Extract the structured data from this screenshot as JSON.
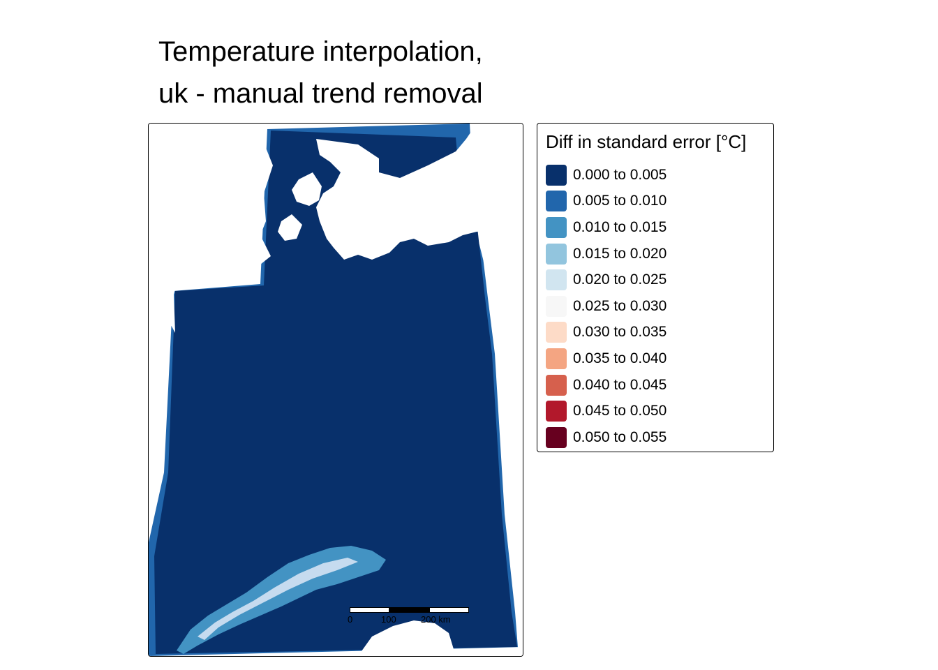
{
  "title": {
    "line1": "Temperature interpolation,",
    "line2": "uk - manual trend removal"
  },
  "map": {
    "fill_color": "#08306B",
    "edge_color": "#2166AC",
    "highland_color": "#C6DBEF",
    "scale_bar": {
      "labels": [
        "0",
        "100",
        "200 km"
      ]
    }
  },
  "legend": {
    "title": "Diff in standard error [°C]",
    "items": [
      {
        "label": "0.000 to 0.005",
        "color": "#08306B"
      },
      {
        "label": "0.005 to 0.010",
        "color": "#2166AC"
      },
      {
        "label": "0.010 to 0.015",
        "color": "#4393C3"
      },
      {
        "label": "0.015 to 0.020",
        "color": "#92C5DE"
      },
      {
        "label": "0.020 to 0.025",
        "color": "#D1E5F0"
      },
      {
        "label": "0.025 to 0.030",
        "color": "#F7F7F7"
      },
      {
        "label": "0.030 to 0.035",
        "color": "#FDDBC7"
      },
      {
        "label": "0.035 to 0.040",
        "color": "#F4A582"
      },
      {
        "label": "0.040 to 0.045",
        "color": "#D6604D"
      },
      {
        "label": "0.045 to 0.050",
        "color": "#B2182B"
      },
      {
        "label": "0.050 to 0.055",
        "color": "#67001F"
      }
    ]
  }
}
